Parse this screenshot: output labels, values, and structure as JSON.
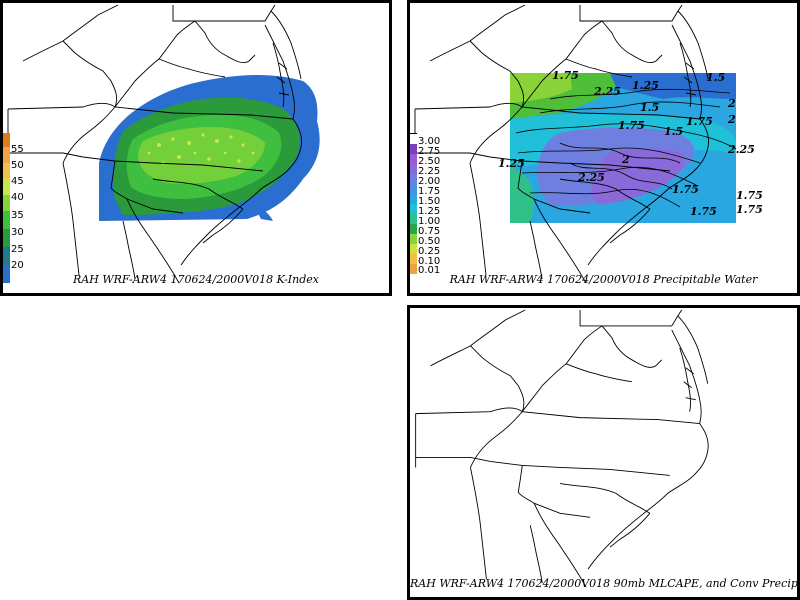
{
  "panels": {
    "kindex": {
      "caption": "RAH WRF-ARW4 170624/2000V018  K-Index",
      "legend": {
        "labels": [
          "55",
          "50",
          "45",
          "40",
          "35",
          "30",
          "25",
          "20"
        ],
        "colors": [
          "#e07a1a",
          "#f2c14a",
          "#c8e84a",
          "#86d43a",
          "#3fbf3f",
          "#2a9a3a",
          "#1f7a8c",
          "#2a6fd0"
        ]
      }
    },
    "pw": {
      "caption": "RAH WRF-ARW4 170624/2000V018  Precipitable Water",
      "legend": {
        "labels": [
          "3.00",
          "2.75",
          "2.50",
          "2.25",
          "2.00",
          "1.75",
          "1.50",
          "1.25",
          "1.00",
          "0.75",
          "0.50",
          "0.25",
          "0.10",
          "0.01"
        ],
        "colors": [
          "#7b3fbf",
          "#9b59d0",
          "#8a6ad8",
          "#6f7fe0",
          "#4a90e0",
          "#2aa6e0",
          "#20c0d8",
          "#30c08a",
          "#2aa64a",
          "#4fbf3a",
          "#8ad43a",
          "#d0e040",
          "#f0c040",
          "#f0a040"
        ]
      },
      "contour_labels": [
        "1.75",
        "1.5",
        "2",
        "1.25",
        "2.25",
        "1.5",
        "1.75",
        "2",
        "2.25",
        "1.75",
        "1.75",
        "2",
        "1.25",
        "1.75",
        "1.5",
        "2.25",
        "1.75",
        "1.75"
      ]
    },
    "cape": {
      "caption": "RAH WRF-ARW4 170624/2000V018  90mb MLCAPE, and Conv Precip"
    }
  }
}
